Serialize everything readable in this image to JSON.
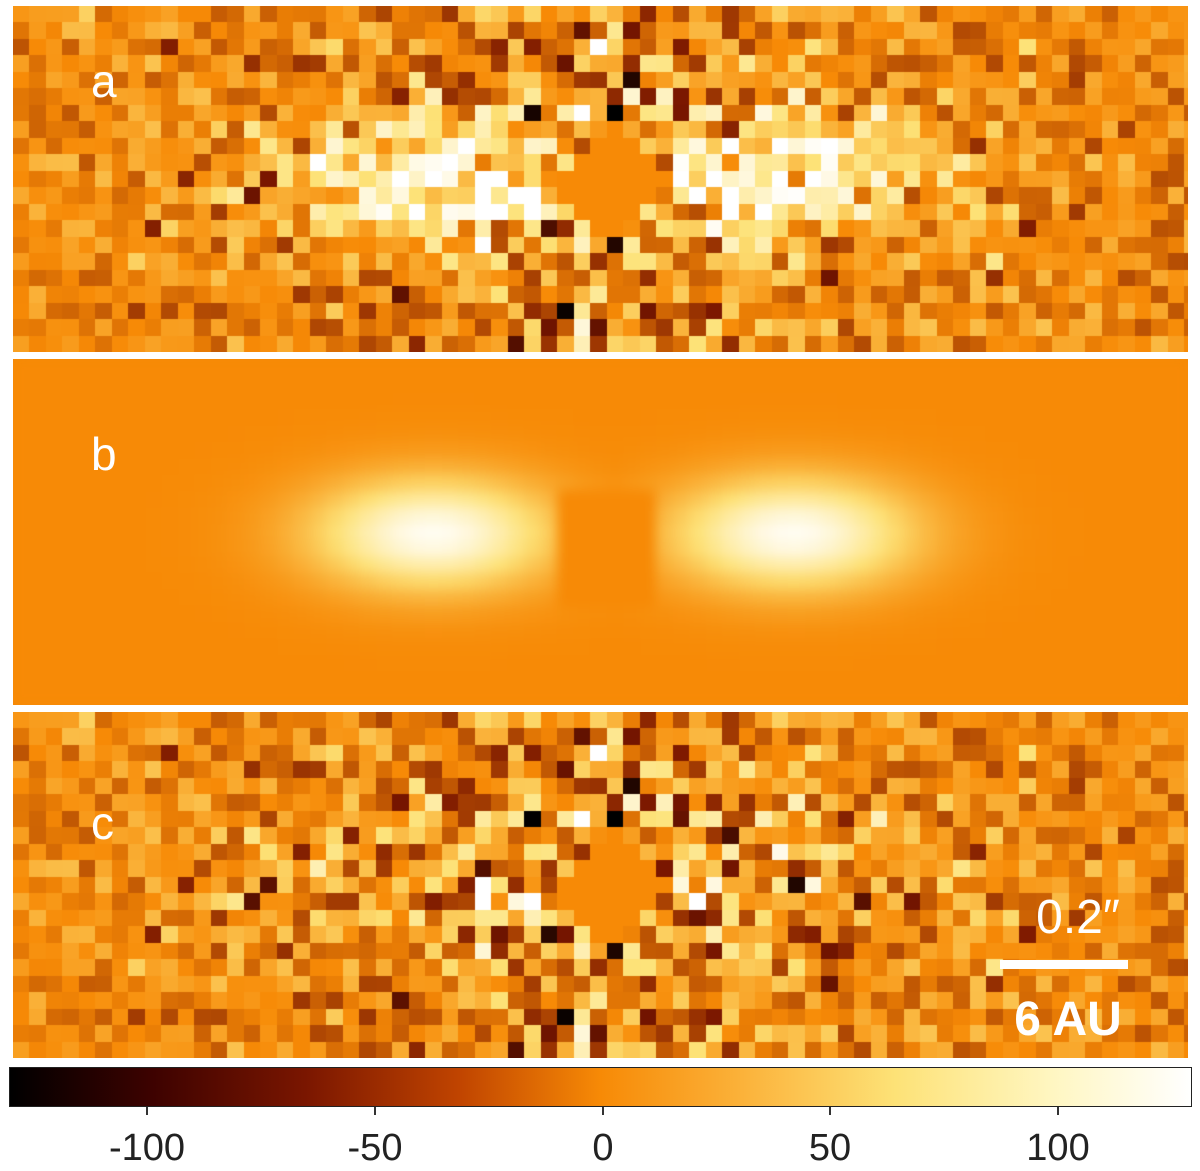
{
  "panels": [
    {
      "id": "a",
      "label": "a",
      "kind": "residual-noisy"
    },
    {
      "id": "b",
      "label": "b",
      "kind": "model-smooth"
    },
    {
      "id": "c",
      "label": "c",
      "kind": "residual-subtracted"
    }
  ],
  "scalebar": {
    "angular": "0.2″",
    "physical": "6 AU"
  },
  "colorbar": {
    "ticks": [
      "-100",
      "-50",
      "0",
      "50",
      "100"
    ],
    "tick_values": [
      -100,
      -50,
      0,
      50,
      100
    ],
    "range": [
      -130,
      130
    ],
    "colors": [
      "#000000",
      "#7a1600",
      "#f78a06",
      "#fde277",
      "#ffffff"
    ]
  }
}
